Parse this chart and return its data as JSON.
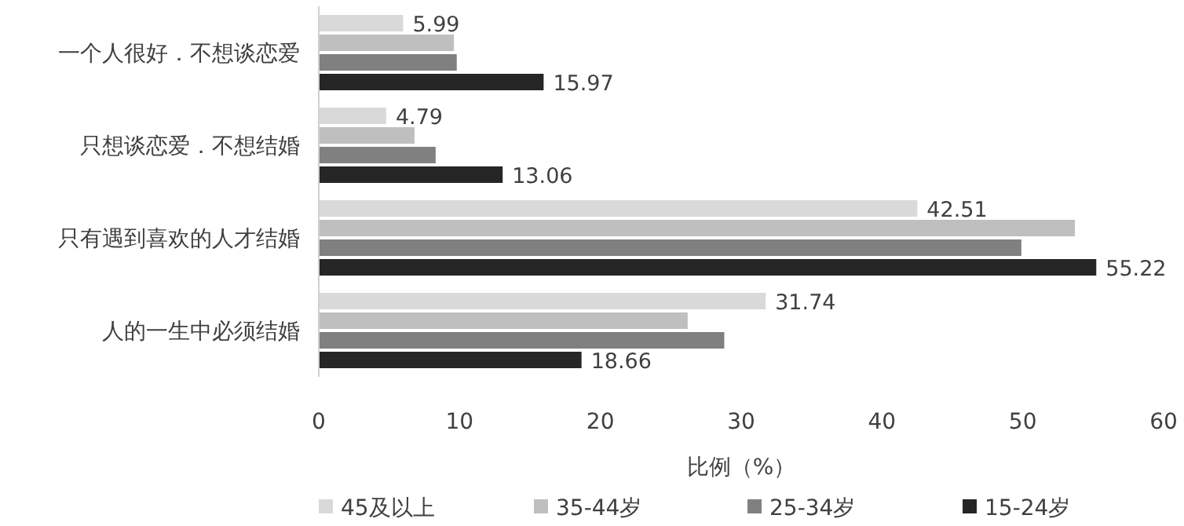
{
  "chart_data": {
    "type": "bar",
    "orientation": "horizontal",
    "xlabel": "比例（%）",
    "categories": [
      "一个人很好．不想谈恋爱",
      "只想谈恋爱．不想结婚",
      "只有遇到喜欢的人才结婚",
      "人的一生中必须结婚"
    ],
    "series": [
      {
        "name": "45及以上",
        "color": "#d9d9d9",
        "values": [
          5.99,
          4.79,
          42.51,
          31.74
        ],
        "value_labels": [
          "5.99",
          "4.79",
          "42.51",
          "31.74"
        ]
      },
      {
        "name": "35-44岁",
        "color": "#bfbfbf",
        "values": [
          9.6,
          6.8,
          53.7,
          26.2
        ]
      },
      {
        "name": "25-34岁",
        "color": "#808080",
        "values": [
          9.8,
          8.3,
          49.9,
          28.8
        ]
      },
      {
        "name": "15-24岁",
        "color": "#262626",
        "values": [
          15.97,
          13.06,
          55.22,
          18.66
        ],
        "value_labels": [
          "15.97",
          "13.06",
          "55.22",
          "18.66"
        ]
      }
    ],
    "xlim": [
      0,
      60
    ],
    "xticks": [
      0,
      10,
      20,
      30,
      40,
      50,
      60
    ],
    "grid": false,
    "legend": "bottom"
  }
}
